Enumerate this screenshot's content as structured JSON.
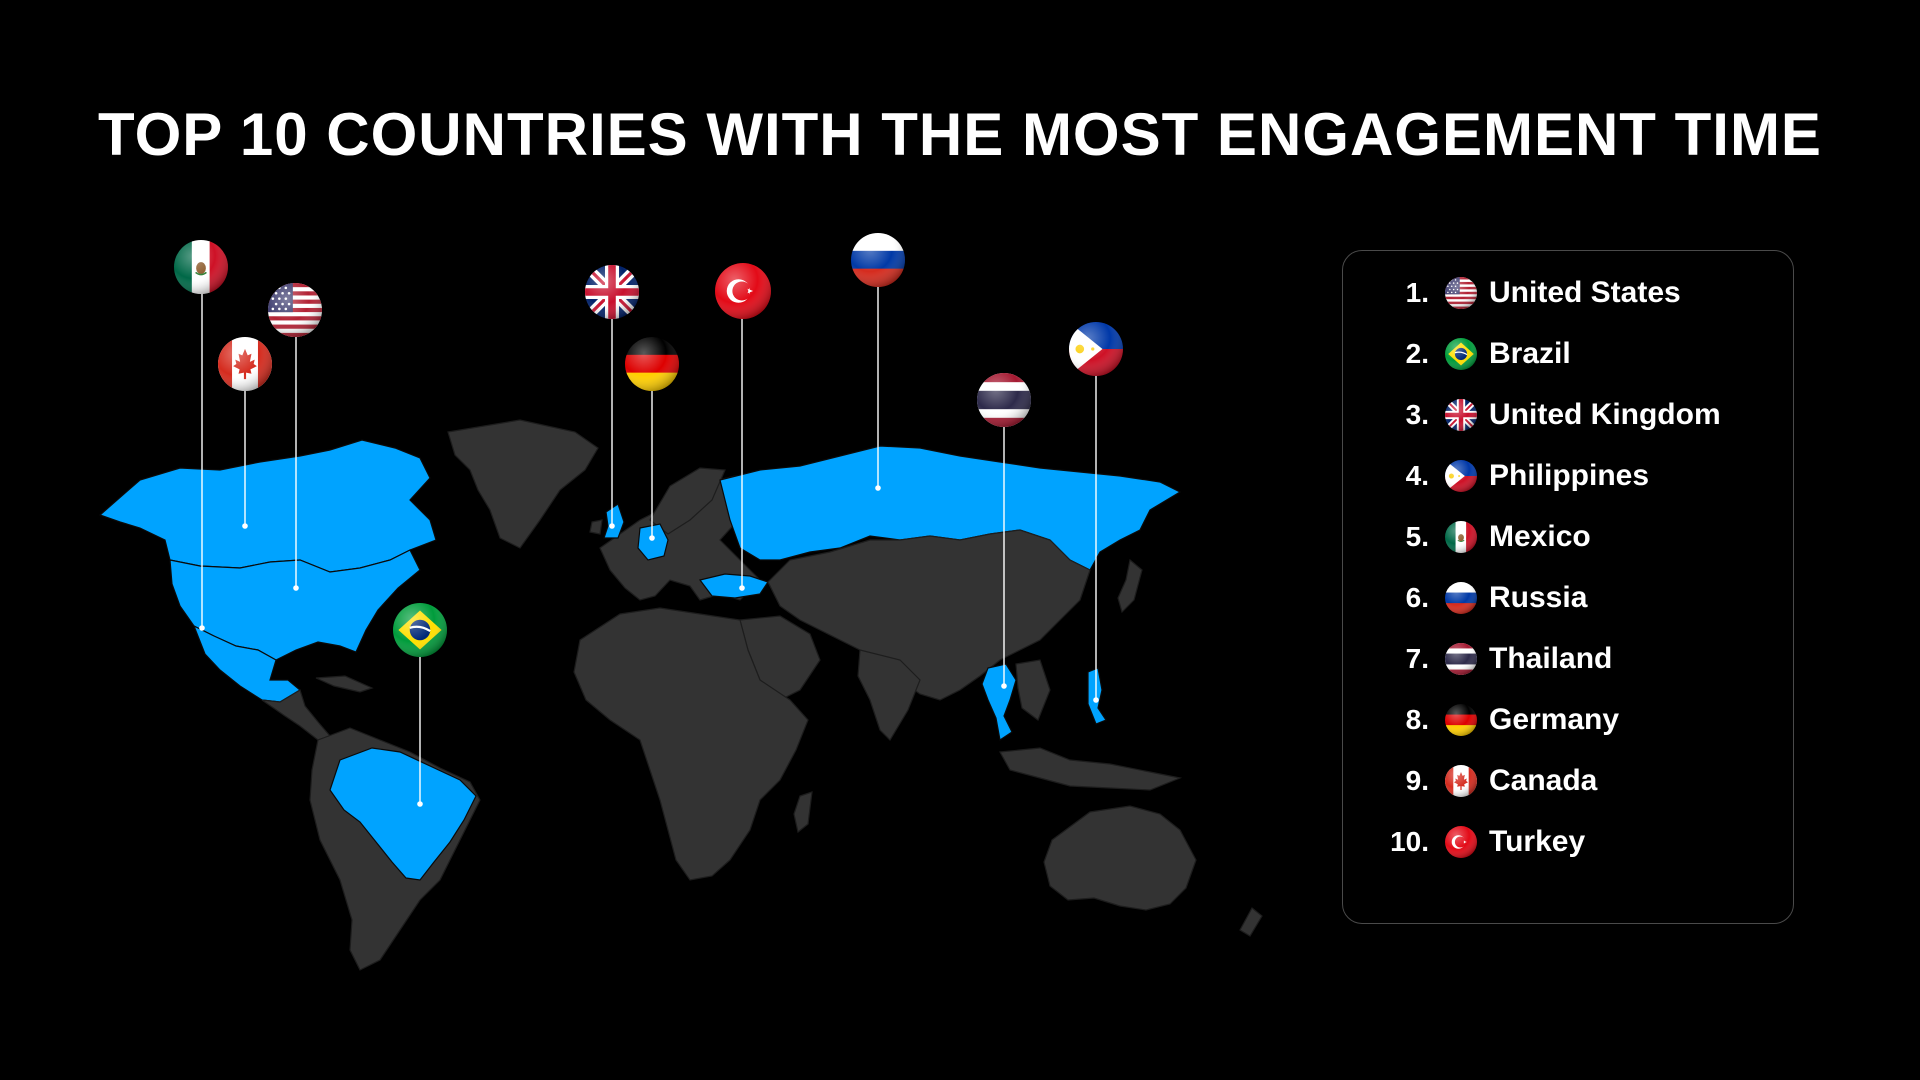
{
  "title": "TOP 10 COUNTRIES WITH THE MOST ENGAGEMENT TIME",
  "colors": {
    "background": "#000000",
    "land": "#333333",
    "highlight": "#00a3ff",
    "text": "#ffffff",
    "legend_border": "#4a4a4a"
  },
  "legend": {
    "items": [
      {
        "rank": "1.",
        "name": "United States",
        "flag": "us-flag-icon"
      },
      {
        "rank": "2.",
        "name": "Brazil",
        "flag": "br-flag-icon"
      },
      {
        "rank": "3.",
        "name": "United Kingdom",
        "flag": "gb-flag-icon"
      },
      {
        "rank": "4.",
        "name": "Philippines",
        "flag": "ph-flag-icon"
      },
      {
        "rank": "5.",
        "name": "Mexico",
        "flag": "mx-flag-icon"
      },
      {
        "rank": "6.",
        "name": "Russia",
        "flag": "ru-flag-icon"
      },
      {
        "rank": "7.",
        "name": "Thailand",
        "flag": "th-flag-icon"
      },
      {
        "rank": "8.",
        "name": "Germany",
        "flag": "de-flag-icon"
      },
      {
        "rank": "9.",
        "name": "Canada",
        "flag": "ca-flag-icon"
      },
      {
        "rank": "10.",
        "name": "Turkey",
        "flag": "tr-flag-icon"
      }
    ]
  },
  "map_pins": [
    {
      "country": "mx"
    },
    {
      "country": "us"
    },
    {
      "country": "ca"
    },
    {
      "country": "br"
    },
    {
      "country": "gb"
    },
    {
      "country": "de"
    },
    {
      "country": "tr"
    },
    {
      "country": "ru"
    },
    {
      "country": "th"
    },
    {
      "country": "ph"
    }
  ]
}
